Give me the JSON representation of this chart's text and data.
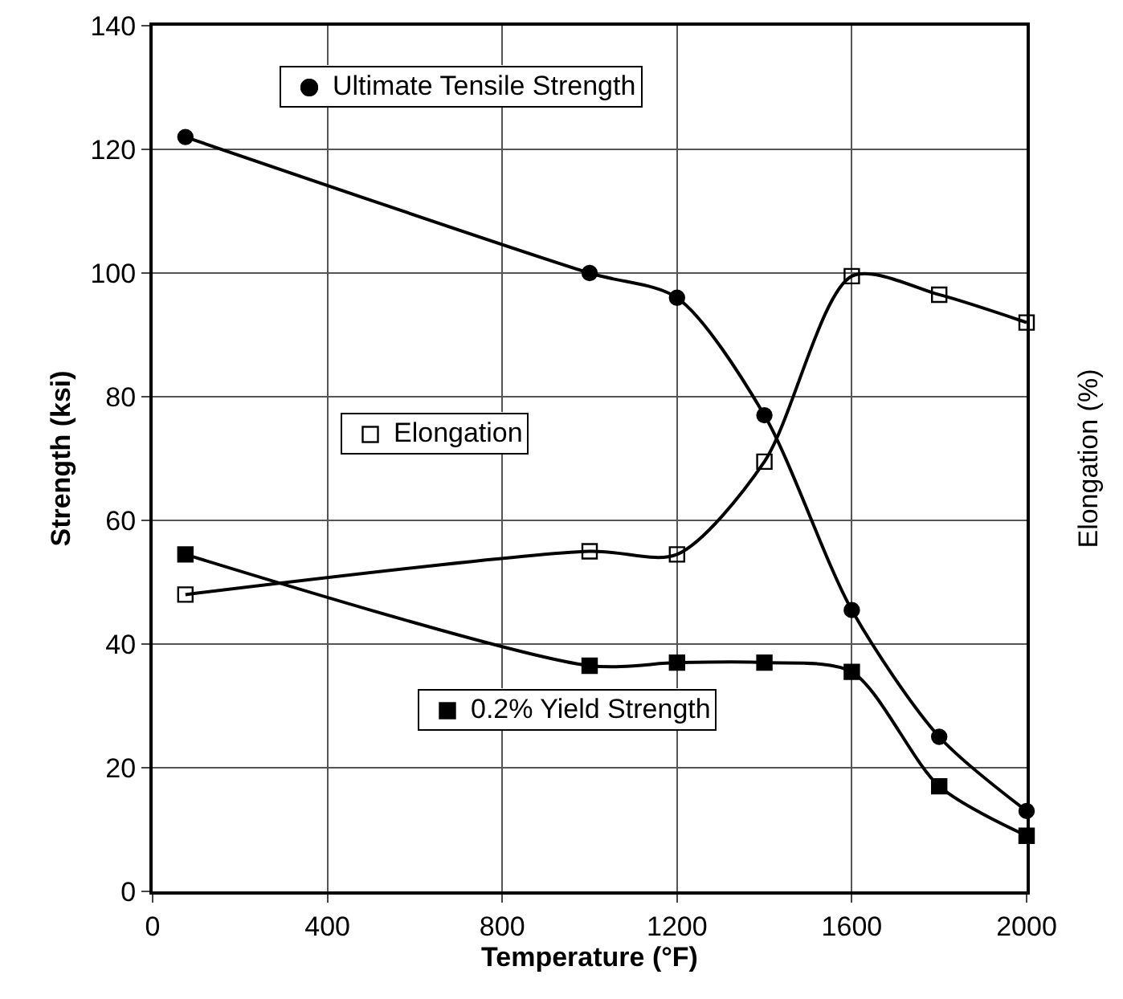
{
  "chart_data": {
    "type": "line",
    "xlabel": "Temperature (°F)",
    "ylabel": "Strength (ksi)",
    "y2label": "Elongation (%)",
    "x": [
      75,
      1000,
      1200,
      1400,
      1600,
      1800,
      2000
    ],
    "series": [
      {
        "name": "Ultimate Tensile Strength",
        "color": "#000000",
        "marker": "circle",
        "values": [
          122,
          100,
          96,
          77,
          45.5,
          25,
          13
        ]
      },
      {
        "name": "Elongation",
        "color": "#000000",
        "marker": "square",
        "values": [
          48,
          55,
          54.5,
          69.5,
          99.5,
          96.5,
          92
        ]
      },
      {
        "name": "0.2% Yield Strength",
        "color": "#000000",
        "marker": "square",
        "values": [
          54.5,
          36.5,
          37,
          37,
          35.5,
          17,
          9
        ]
      }
    ],
    "xlim": [
      0,
      2000
    ],
    "xticks": [
      0,
      400,
      800,
      1200,
      1600,
      2000
    ],
    "ylim": [
      0,
      140
    ],
    "yticks": [
      0,
      20,
      40,
      60,
      80,
      100,
      120,
      140
    ],
    "grid": true,
    "legend": "left",
    "line_style": "solid"
  }
}
